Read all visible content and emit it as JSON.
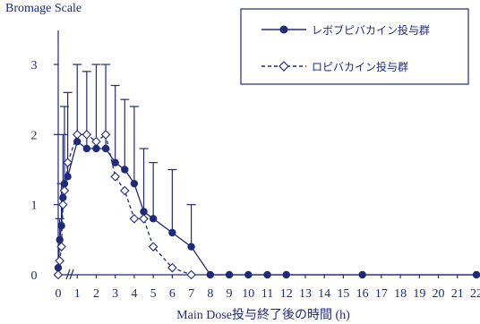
{
  "chart_data": {
    "type": "line",
    "ylabel": "Bromage Scale",
    "xlabel": "Main Dose投与終了後の時間 (h)",
    "xlim": [
      0,
      22
    ],
    "ylim": [
      0,
      3
    ],
    "x_ticks": [
      0,
      1,
      2,
      3,
      4,
      5,
      6,
      7,
      8,
      9,
      10,
      11,
      12,
      13,
      14,
      15,
      16,
      17,
      18,
      19,
      20,
      21,
      22
    ],
    "x_tick_labels": [
      "0",
      "1",
      "2",
      "3",
      "4",
      "5",
      "6",
      "7",
      "8",
      "9",
      "10",
      "11",
      "12",
      "13",
      "14",
      "15",
      "16",
      "17",
      "18",
      "19",
      "20",
      "21",
      "22"
    ],
    "y_ticks": [
      0,
      1,
      2,
      3
    ],
    "y_tick_labels": [
      "0",
      "1",
      "2",
      "3"
    ],
    "legend_position": "top-right",
    "series": [
      {
        "name": "レボブピバカイン投与群",
        "color": "#1f2a7a",
        "marker": "filled-circle",
        "linestyle": "solid",
        "x": [
          0,
          0.08,
          0.17,
          0.25,
          0.33,
          0.5,
          1.0,
          1.5,
          2.0,
          2.5,
          3.0,
          3.5,
          4.0,
          4.5,
          5.0,
          6.0,
          7.0,
          8.0,
          9.0,
          10.0,
          11.0,
          12.0,
          16.0,
          22.0
        ],
        "y": [
          0.1,
          0.5,
          0.7,
          1.1,
          1.3,
          1.4,
          1.9,
          1.8,
          1.8,
          1.8,
          1.6,
          1.5,
          1.3,
          0.9,
          0.8,
          0.6,
          0.4,
          0,
          0,
          0,
          0,
          0,
          0,
          0
        ],
        "err": [
          0,
          0.3,
          0.6,
          0.9,
          1.1,
          1.2,
          1.1,
          1.1,
          1.2,
          1.2,
          1.1,
          1.0,
          1.1,
          0.9,
          0.8,
          0.9,
          0.6,
          0,
          0,
          0,
          0,
          0,
          0,
          0
        ]
      },
      {
        "name": "ロピバカイン投与群",
        "color": "#1f2a7a",
        "marker": "open-diamond",
        "linestyle": "dashed",
        "x": [
          0,
          0.08,
          0.17,
          0.25,
          0.33,
          0.5,
          1.0,
          1.5,
          2.0,
          2.5,
          3.0,
          3.5,
          4.0,
          4.5,
          5.0,
          6.0,
          7.0
        ],
        "y": [
          0,
          0.2,
          0.4,
          1.0,
          1.2,
          1.6,
          2.0,
          2.0,
          1.9,
          2.0,
          1.4,
          1.2,
          0.8,
          0.8,
          0.4,
          0.1,
          0
        ],
        "err": [
          0,
          0,
          0,
          0,
          0,
          0,
          0,
          0,
          0,
          0,
          0,
          0,
          0,
          0,
          0,
          0,
          0
        ]
      }
    ]
  },
  "style": {
    "ink": "#1f2a7a",
    "background": "#ffffff"
  }
}
